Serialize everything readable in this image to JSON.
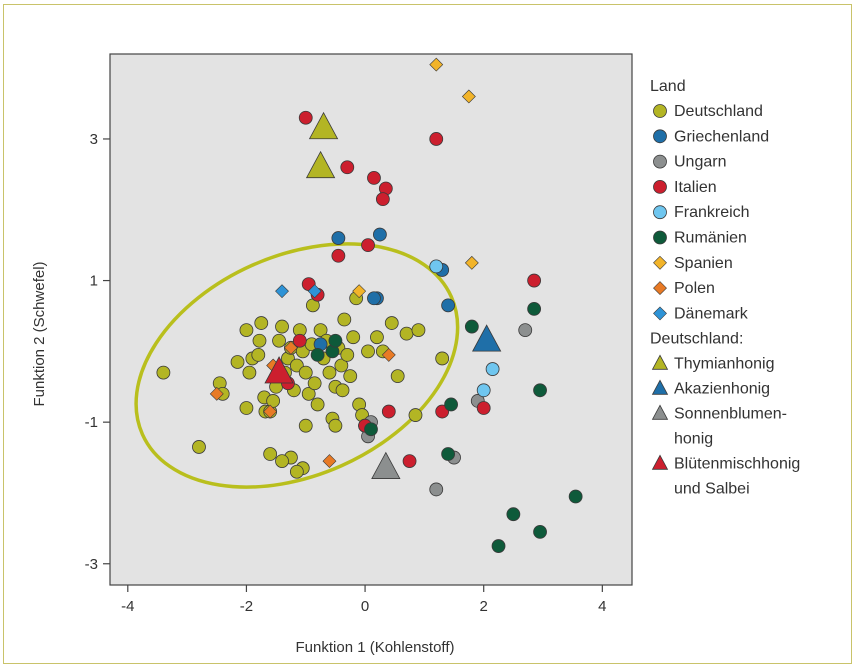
{
  "chart_data": {
    "type": "scatter",
    "title": "",
    "xlabel": "Funktion 1 (Kohlenstoff)",
    "ylabel": "Funktion 2 (Schwefel)",
    "xlim": [
      -4.3,
      4.5
    ],
    "ylim": [
      -3.3,
      4.2
    ],
    "xticks": [
      -4,
      -2,
      0,
      2,
      4
    ],
    "yticks": [
      -3,
      -1,
      1,
      3
    ],
    "xtick_labels": [
      "-4",
      "-2",
      "0",
      "2",
      "4"
    ],
    "ytick_labels": [
      "-3",
      "-1",
      "1",
      "3"
    ],
    "grid": false,
    "legend_position": "right",
    "ellipse": {
      "cx": -1.15,
      "cy": -0.2,
      "rx": 2.85,
      "ry": 1.55,
      "rotation_deg": 24,
      "color": "#b9bf1d"
    },
    "legend": {
      "title1": "Land",
      "countries": [
        {
          "label": "Deutschland",
          "shape": "circle",
          "color": "#b3b524"
        },
        {
          "label": "Griechenland",
          "shape": "circle",
          "color": "#1f6fa8"
        },
        {
          "label": "Ungarn",
          "shape": "circle",
          "color": "#8c8f8f"
        },
        {
          "label": "Italien",
          "shape": "circle",
          "color": "#cc1f2e"
        },
        {
          "label": "Frankreich",
          "shape": "circle",
          "color": "#6fc6ef"
        },
        {
          "label": "Rumänien",
          "shape": "circle",
          "color": "#0e5a3a"
        },
        {
          "label": "Spanien",
          "shape": "diamond",
          "color": "#f2b42a"
        },
        {
          "label": "Polen",
          "shape": "diamond",
          "color": "#e87a25"
        },
        {
          "label": "Dänemark",
          "shape": "diamond",
          "color": "#2e93d6"
        }
      ],
      "title2": "Deutschland:",
      "types": [
        {
          "lines": [
            "Thymianhonig"
          ],
          "color": "#b3b524"
        },
        {
          "lines": [
            "Akazienhonig"
          ],
          "color": "#1f6fa8"
        },
        {
          "lines": [
            "Sonnenblumen-",
            "honig"
          ],
          "color": "#8c8f8f"
        },
        {
          "lines": [
            "Blütenmischhonig",
            "und Salbei"
          ],
          "color": "#cc1f2e"
        }
      ]
    },
    "series": [
      {
        "name": "Deutschland",
        "shape": "circle",
        "color": "#b3b524",
        "points": [
          [
            -3.4,
            -0.3
          ],
          [
            -2.8,
            -1.35
          ],
          [
            -2.45,
            -0.45
          ],
          [
            -2.4,
            -0.6
          ],
          [
            -2.15,
            -0.15
          ],
          [
            -2.0,
            0.3
          ],
          [
            -1.95,
            -0.3
          ],
          [
            -1.9,
            -0.1
          ],
          [
            -1.8,
            -0.05
          ],
          [
            -1.78,
            0.15
          ],
          [
            -1.75,
            0.4
          ],
          [
            -1.7,
            -0.65
          ],
          [
            -1.68,
            -0.85
          ],
          [
            -1.6,
            -0.85
          ],
          [
            -1.55,
            -0.7
          ],
          [
            -1.5,
            -0.5
          ],
          [
            -1.45,
            0.15
          ],
          [
            -1.4,
            0.35
          ],
          [
            -1.35,
            -0.3
          ],
          [
            -1.3,
            -0.1
          ],
          [
            -1.25,
            0.05
          ],
          [
            -1.2,
            -0.55
          ],
          [
            -1.15,
            -0.2
          ],
          [
            -1.1,
            0.3
          ],
          [
            -1.05,
            0.0
          ],
          [
            -1.0,
            -0.3
          ],
          [
            -0.95,
            -0.6
          ],
          [
            -0.9,
            0.1
          ],
          [
            -0.88,
            0.65
          ],
          [
            -0.85,
            -0.45
          ],
          [
            -0.8,
            -0.75
          ],
          [
            -0.75,
            0.3
          ],
          [
            -0.7,
            -0.1
          ],
          [
            -0.65,
            0.15
          ],
          [
            -0.6,
            -0.3
          ],
          [
            -0.55,
            -0.95
          ],
          [
            -0.5,
            -0.5
          ],
          [
            -0.45,
            0.05
          ],
          [
            -0.4,
            -0.2
          ],
          [
            -0.38,
            -0.55
          ],
          [
            -0.35,
            0.45
          ],
          [
            -0.3,
            -0.05
          ],
          [
            -0.25,
            -0.35
          ],
          [
            -0.2,
            0.2
          ],
          [
            -0.15,
            0.75
          ],
          [
            -0.1,
            -0.75
          ],
          [
            -0.05,
            -0.9
          ],
          [
            0.05,
            0.0
          ],
          [
            0.2,
            0.2
          ],
          [
            0.3,
            0.0
          ],
          [
            0.45,
            0.4
          ],
          [
            0.55,
            -0.35
          ],
          [
            0.7,
            0.25
          ],
          [
            0.85,
            -0.9
          ],
          [
            0.9,
            0.3
          ],
          [
            1.3,
            -0.1
          ],
          [
            -0.5,
            -1.05
          ],
          [
            -1.0,
            -1.05
          ],
          [
            -1.05,
            -1.65
          ],
          [
            -1.15,
            -1.7
          ],
          [
            -1.25,
            -1.5
          ],
          [
            -1.4,
            -1.55
          ],
          [
            -1.6,
            -1.45
          ],
          [
            -2.0,
            -0.8
          ]
        ]
      },
      {
        "name": "Griechenland",
        "shape": "circle",
        "color": "#1f6fa8",
        "points": [
          [
            -0.45,
            1.6
          ],
          [
            0.25,
            1.65
          ],
          [
            0.2,
            0.75
          ],
          [
            1.4,
            0.65
          ],
          [
            1.3,
            1.15
          ],
          [
            -0.75,
            0.1
          ],
          [
            0.15,
            0.75
          ]
        ]
      },
      {
        "name": "Ungarn",
        "shape": "circle",
        "color": "#8c8f8f",
        "points": [
          [
            0.0,
            -1.05
          ],
          [
            0.05,
            -1.2
          ],
          [
            1.2,
            -1.95
          ],
          [
            1.5,
            -1.5
          ],
          [
            1.9,
            -0.7
          ],
          [
            2.7,
            0.3
          ],
          [
            0.1,
            -1.0
          ]
        ]
      },
      {
        "name": "Italien",
        "shape": "circle",
        "color": "#cc1f2e",
        "points": [
          [
            -1.0,
            3.3
          ],
          [
            -0.3,
            2.6
          ],
          [
            0.15,
            2.45
          ],
          [
            0.35,
            2.3
          ],
          [
            0.3,
            2.15
          ],
          [
            0.05,
            1.5
          ],
          [
            -0.45,
            1.35
          ],
          [
            1.2,
            3.0
          ],
          [
            -0.95,
            0.95
          ],
          [
            -0.8,
            0.8
          ],
          [
            -1.1,
            0.15
          ],
          [
            -1.3,
            -0.45
          ],
          [
            0.4,
            -0.85
          ],
          [
            0.75,
            -1.55
          ],
          [
            1.3,
            -0.85
          ],
          [
            2.0,
            -0.8
          ],
          [
            2.85,
            1.0
          ],
          [
            0.0,
            -1.05
          ]
        ]
      },
      {
        "name": "Frankreich",
        "shape": "circle",
        "color": "#6fc6ef",
        "points": [
          [
            1.2,
            1.2
          ],
          [
            2.15,
            -0.25
          ],
          [
            2.0,
            -0.55
          ]
        ]
      },
      {
        "name": "Rumänien",
        "shape": "circle",
        "color": "#0e5a3a",
        "points": [
          [
            -0.8,
            -0.05
          ],
          [
            -0.55,
            0.0
          ],
          [
            -0.5,
            0.15
          ],
          [
            0.1,
            -1.1
          ],
          [
            1.45,
            -0.75
          ],
          [
            1.4,
            -1.45
          ],
          [
            1.8,
            0.35
          ],
          [
            2.85,
            0.6
          ],
          [
            2.95,
            -0.55
          ],
          [
            2.5,
            -2.3
          ],
          [
            3.55,
            -2.05
          ],
          [
            2.95,
            -2.55
          ],
          [
            2.25,
            -2.75
          ]
        ]
      },
      {
        "name": "Spanien",
        "shape": "diamond",
        "color": "#f2b42a",
        "points": [
          [
            1.2,
            4.05
          ],
          [
            1.75,
            3.6
          ],
          [
            1.8,
            1.25
          ],
          [
            -0.1,
            0.85
          ]
        ]
      },
      {
        "name": "Polen",
        "shape": "diamond",
        "color": "#e87a25",
        "points": [
          [
            -2.5,
            -0.6
          ],
          [
            -1.55,
            -0.2
          ],
          [
            -1.25,
            0.05
          ],
          [
            -1.6,
            -0.85
          ],
          [
            -0.6,
            -1.55
          ],
          [
            0.4,
            -0.05
          ]
        ]
      },
      {
        "name": "Dänemark",
        "shape": "diamond",
        "color": "#2e93d6",
        "points": [
          [
            -1.4,
            0.85
          ],
          [
            -0.85,
            0.85
          ]
        ]
      },
      {
        "name": "Thymianhonig",
        "shape": "triangle",
        "color": "#b3b524",
        "points": [
          [
            -0.7,
            3.15
          ],
          [
            -0.75,
            2.6
          ]
        ]
      },
      {
        "name": "Akazienhonig",
        "shape": "triangle",
        "color": "#1f6fa8",
        "points": [
          [
            2.05,
            0.15
          ]
        ]
      },
      {
        "name": "Sonnenblumenhonig",
        "shape": "triangle",
        "color": "#8c8f8f",
        "points": [
          [
            0.35,
            -1.65
          ]
        ]
      },
      {
        "name": "Blütenmischhonig und Salbei",
        "shape": "triangle",
        "color": "#cc1f2e",
        "points": [
          [
            -1.45,
            -0.3
          ]
        ]
      }
    ]
  }
}
